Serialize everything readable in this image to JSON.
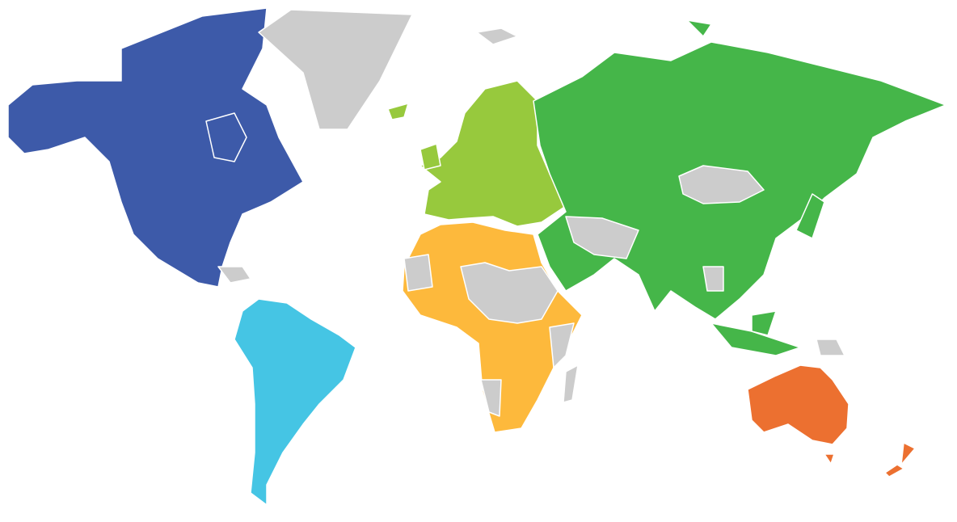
{
  "map": {
    "type": "world-choropleth",
    "regions": {
      "north_america": "#3d5aa9",
      "south_america": "#45c5e4",
      "europe": "#97c93d",
      "asia": "#45b649",
      "africa": "#fdb93c",
      "oceania": "#ec7030",
      "no_data": "#cccccc"
    },
    "background": "#ffffff"
  }
}
